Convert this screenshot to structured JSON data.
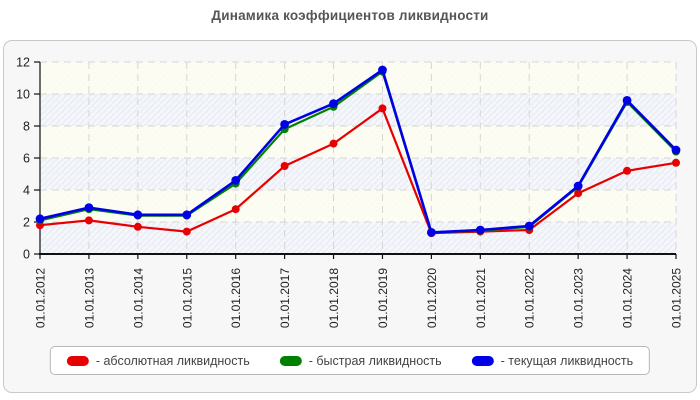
{
  "page": {
    "title": "Динамика коэффициентов ликвидности"
  },
  "legend": {
    "items": [
      {
        "label": "- абсолютная ликвидность",
        "color": "#e80000"
      },
      {
        "label": "- быстрая ликвидность",
        "color": "#008000"
      },
      {
        "label": "- текущая ликвидность",
        "color": "#0000e6"
      }
    ]
  },
  "chart_data": {
    "type": "line",
    "title": "Динамика коэффициентов ликвидности",
    "categories": [
      "01.01.2012",
      "01.01.2013",
      "01.01.2014",
      "01.01.2015",
      "01.01.2016",
      "01.01.2017",
      "01.01.2018",
      "01.01.2019",
      "01.01.2020",
      "01.01.2021",
      "01.01.2022",
      "01.01.2023",
      "01.01.2024",
      "01.01.2025"
    ],
    "series": [
      {
        "name": "абсолютная ликвидность",
        "color": "#e80000",
        "values": [
          1.8,
          2.1,
          1.7,
          1.4,
          2.8,
          5.5,
          6.9,
          9.1,
          1.3,
          1.4,
          1.5,
          3.8,
          5.2,
          5.7
        ]
      },
      {
        "name": "быстрая ликвидность",
        "color": "#008000",
        "values": [
          2.1,
          2.8,
          2.4,
          2.4,
          4.4,
          7.8,
          9.2,
          11.4,
          1.35,
          1.45,
          1.7,
          4.2,
          9.5,
          6.4
        ]
      },
      {
        "name": "текущая ликвидность",
        "color": "#0000e6",
        "values": [
          2.2,
          2.9,
          2.45,
          2.45,
          4.6,
          8.1,
          9.4,
          11.5,
          1.35,
          1.5,
          1.75,
          4.25,
          9.6,
          6.5
        ]
      }
    ],
    "xlabel": "",
    "ylabel": "",
    "ylim": [
      0,
      12
    ],
    "y_ticks": [
      0,
      2,
      4,
      6,
      8,
      10,
      12
    ],
    "grid": "dashed",
    "legend_position": "bottom",
    "plot_band_colors": [
      "#fbfbee",
      "#edeff7"
    ],
    "hatch": true
  }
}
